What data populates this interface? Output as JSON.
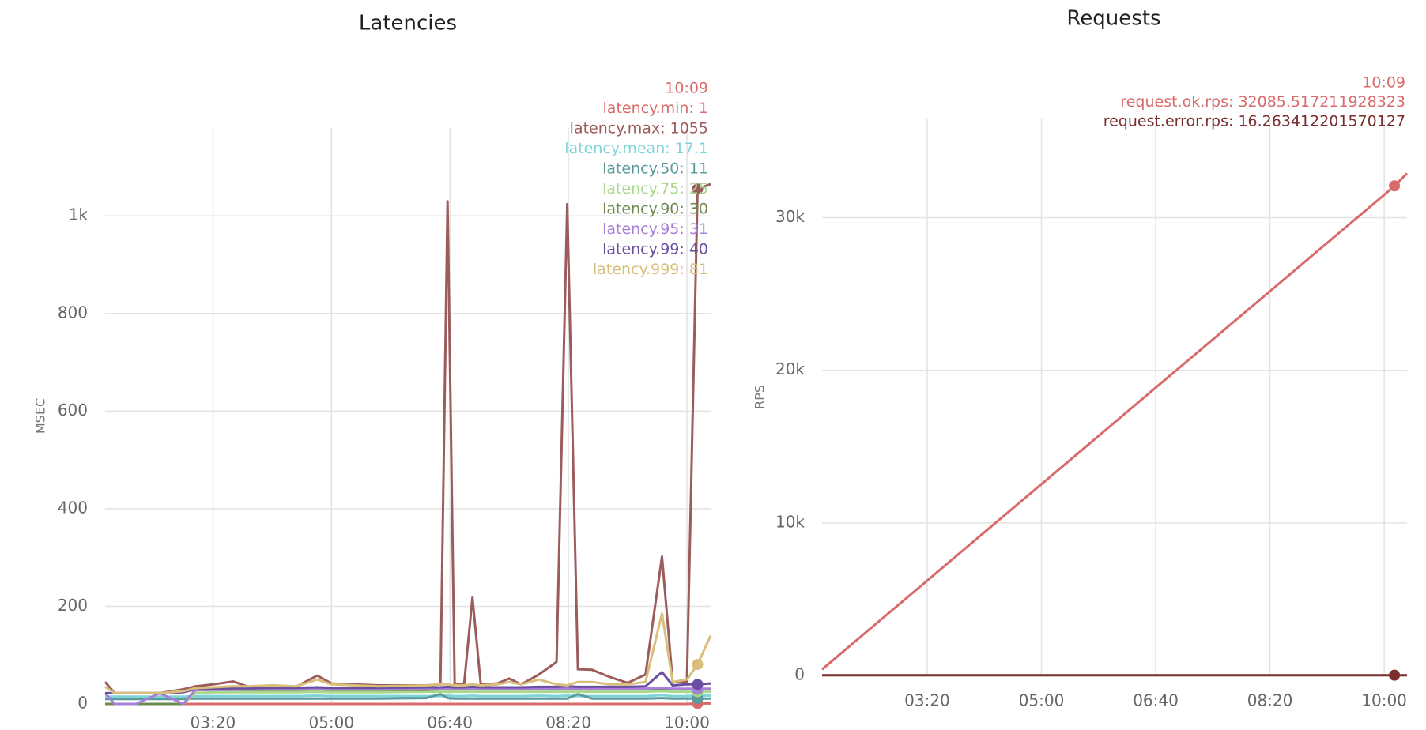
{
  "chart_data": [
    {
      "type": "line",
      "title": "Latencies",
      "y_label": "MSEC",
      "grid": true,
      "x": [
        109,
        117,
        135,
        155,
        175,
        185,
        200,
        217,
        230,
        250,
        270,
        288,
        300,
        340,
        380,
        392,
        398,
        404,
        412,
        419,
        426,
        440,
        450,
        460,
        475,
        490,
        499,
        508,
        520,
        535,
        550,
        565,
        579,
        588,
        600,
        609,
        620
      ],
      "xlim": [
        109,
        620
      ],
      "xticks": [
        {
          "value": 200,
          "label": "03:20"
        },
        {
          "value": 300,
          "label": "05:00"
        },
        {
          "value": 400,
          "label": "06:40"
        },
        {
          "value": 500,
          "label": "08:20"
        },
        {
          "value": 600,
          "label": "10:00"
        }
      ],
      "ylim": [
        0,
        1180
      ],
      "yticks": [
        0,
        200,
        400,
        600,
        800,
        {
          "value": 1000,
          "label": "1k"
        }
      ],
      "series": [
        {
          "name": "latency.min",
          "color": "#d96a6a",
          "values": [
            0,
            0,
            0,
            0,
            0,
            0,
            0,
            0,
            0,
            0,
            0,
            0,
            0,
            0,
            0,
            0,
            0,
            0,
            0,
            0,
            0,
            0,
            0,
            0,
            0,
            0,
            0,
            0,
            0,
            0,
            0,
            0,
            0,
            0,
            0,
            1,
            1
          ]
        },
        {
          "name": "latency.max",
          "color": "#9c5c5c",
          "values": [
            45,
            22,
            22,
            22,
            30,
            36,
            40,
            46,
            35,
            38,
            35,
            58,
            42,
            38,
            38,
            40,
            1030,
            40,
            42,
            218,
            40,
            42,
            52,
            40,
            60,
            86,
            1024,
            71,
            70,
            55,
            43,
            60,
            302,
            45,
            45,
            1055,
            1065
          ]
        },
        {
          "name": "latency.mean",
          "color": "#7fd4d9",
          "values": [
            15,
            15,
            15,
            15,
            15,
            16,
            16,
            16,
            16,
            16,
            16,
            17,
            16,
            16,
            16,
            16,
            17,
            16,
            16,
            17,
            16,
            16,
            16,
            16,
            17,
            16,
            17,
            16,
            16,
            16,
            16,
            16,
            18,
            16,
            16,
            17.1,
            17
          ]
        },
        {
          "name": "latency.50",
          "color": "#5b9a9a",
          "values": [
            10,
            10,
            10,
            10,
            10,
            11,
            11,
            11,
            11,
            11,
            11,
            11,
            11,
            11,
            12,
            20,
            12,
            11,
            11,
            11,
            11,
            11,
            11,
            11,
            11,
            11,
            11,
            20,
            11,
            11,
            11,
            11,
            12,
            11,
            11,
            11,
            11
          ]
        },
        {
          "name": "latency.75",
          "color": "#a8d88a",
          "values": [
            0,
            0,
            0,
            0,
            0,
            22,
            24,
            24,
            24,
            24,
            24,
            25,
            24,
            24,
            25,
            25,
            25,
            25,
            25,
            25,
            25,
            25,
            25,
            25,
            25,
            25,
            25,
            25,
            25,
            25,
            25,
            25,
            26,
            25,
            25,
            25,
            25
          ]
        },
        {
          "name": "latency.90",
          "color": "#6d8a4e",
          "values": [
            0,
            0,
            0,
            0,
            0,
            28,
            29,
            29,
            29,
            29,
            29,
            30,
            29,
            29,
            29,
            30,
            30,
            30,
            30,
            30,
            30,
            30,
            30,
            30,
            30,
            30,
            30,
            30,
            30,
            30,
            30,
            30,
            31,
            30,
            30,
            30,
            30
          ]
        },
        {
          "name": "latency.95",
          "color": "#a87fd8",
          "values": [
            22,
            0,
            0,
            22,
            0,
            28,
            29,
            29,
            30,
            30,
            30,
            30,
            30,
            30,
            30,
            31,
            31,
            31,
            31,
            31,
            31,
            31,
            31,
            31,
            31,
            31,
            31,
            31,
            31,
            31,
            31,
            31,
            33,
            31,
            31,
            31,
            31
          ]
        },
        {
          "name": "latency.99",
          "color": "#6a4fa0",
          "values": [
            22,
            22,
            22,
            22,
            24,
            30,
            31,
            32,
            32,
            33,
            33,
            34,
            33,
            33,
            34,
            34,
            35,
            34,
            34,
            35,
            34,
            34,
            34,
            34,
            35,
            35,
            36,
            35,
            35,
            35,
            35,
            36,
            65,
            38,
            40,
            40,
            42
          ]
        },
        {
          "name": "latency.999",
          "color": "#d8be7a",
          "values": [
            35,
            22,
            22,
            22,
            26,
            32,
            34,
            36,
            36,
            38,
            36,
            50,
            40,
            36,
            38,
            40,
            40,
            38,
            38,
            40,
            38,
            40,
            45,
            40,
            50,
            40,
            38,
            45,
            45,
            40,
            40,
            45,
            185,
            45,
            50,
            81,
            140
          ]
        }
      ],
      "tooltip": {
        "x": {
          "value": 609,
          "label": "10:09"
        },
        "entries": [
          "latency.min: 1",
          "latency.max: 1055",
          "latency.mean: 17.1",
          "latency.50: 11",
          "latency.75: 25",
          "latency.90: 30",
          "latency.95: 31",
          "latency.99: 40",
          "latency.999: 81"
        ]
      }
    },
    {
      "type": "line",
      "title": "Requests",
      "y_label": "RPS",
      "grid": true,
      "x": [
        108,
        150,
        200,
        250,
        300,
        350,
        400,
        450,
        500,
        550,
        600,
        609,
        620
      ],
      "xlim": [
        108,
        620
      ],
      "xticks": [
        {
          "value": 200,
          "label": "03:20"
        },
        {
          "value": 300,
          "label": "05:00"
        },
        {
          "value": 400,
          "label": "06:40"
        },
        {
          "value": 500,
          "label": "08:20"
        },
        {
          "value": 600,
          "label": "10:00"
        }
      ],
      "ylim": [
        0,
        36500
      ],
      "yticks": [
        0,
        {
          "value": 10000,
          "label": "10k"
        },
        {
          "value": 20000,
          "label": "20k"
        },
        {
          "value": 30000,
          "label": "30k"
        }
      ],
      "series": [
        {
          "name": "request.ok.rps",
          "color": "#d96a6a",
          "values": [
            400,
            3060,
            6220,
            9380,
            12540,
            15700,
            18860,
            22020,
            25180,
            28340,
            31500,
            32085.517211928323,
            32900
          ]
        },
        {
          "name": "request.error.rps",
          "color": "#7a2e2e",
          "values": [
            16,
            16,
            16,
            16,
            16,
            16,
            16,
            16,
            16,
            16,
            16,
            16.263412201570127,
            16
          ]
        }
      ],
      "tooltip": {
        "x": {
          "value": 609,
          "label": "10:09"
        },
        "entries": [
          "request.ok.rps: 32085.517211928323",
          "request.error.rps: 16.263412201570127"
        ]
      }
    }
  ]
}
